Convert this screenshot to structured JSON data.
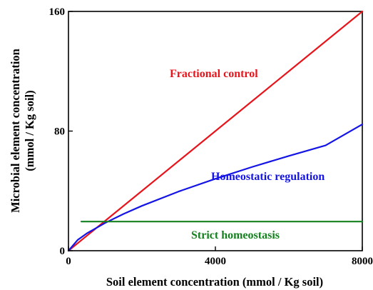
{
  "chart_data": {
    "type": "line",
    "title": "",
    "xlabel": "Soil element concentration (mmol / Kg soil)",
    "ylabel": [
      "Microbial element concentration",
      "(mmol / Kg soil)"
    ],
    "xlim": [
      0,
      8000
    ],
    "ylim": [
      0,
      160
    ],
    "x_ticks": [
      {
        "value": 0,
        "label": "0"
      },
      {
        "value": 4000,
        "label": "4000"
      },
      {
        "value": 8000,
        "label": "8000"
      }
    ],
    "y_ticks": [
      {
        "value": 0,
        "label": "0"
      },
      {
        "value": 80,
        "label": "80"
      },
      {
        "value": 160,
        "label": "160"
      }
    ],
    "grid": false,
    "series": [
      {
        "name": "Fractional control",
        "color": "#e8141b",
        "x": [
          0,
          1000,
          2000,
          3000,
          4000,
          5000,
          6000,
          7000,
          8000
        ],
        "y": [
          0,
          20,
          40,
          60,
          80,
          100,
          120,
          140,
          160
        ]
      },
      {
        "name": "Homeostatic regulation",
        "color": "#1414e6",
        "x": [
          0,
          250,
          500,
          1000,
          1500,
          2000,
          3000,
          4000,
          5000,
          6000,
          7000,
          8000
        ],
        "y": [
          0,
          7.2,
          11.6,
          18.6,
          24.6,
          30.0,
          39.6,
          48.1,
          56.0,
          63.4,
          70.4,
          84.5
        ]
      },
      {
        "name": "Strict homeostasis",
        "color": "#14801e",
        "x": [
          350,
          8000
        ],
        "y": [
          19.5,
          19.5
        ]
      }
    ],
    "annotations": [
      {
        "text": "Fractional control",
        "color": "#e8141b"
      },
      {
        "text": "Homeostatic regulation",
        "color": "#1414e6"
      },
      {
        "text": "Strict homeostasis",
        "color": "#14801e"
      }
    ]
  }
}
